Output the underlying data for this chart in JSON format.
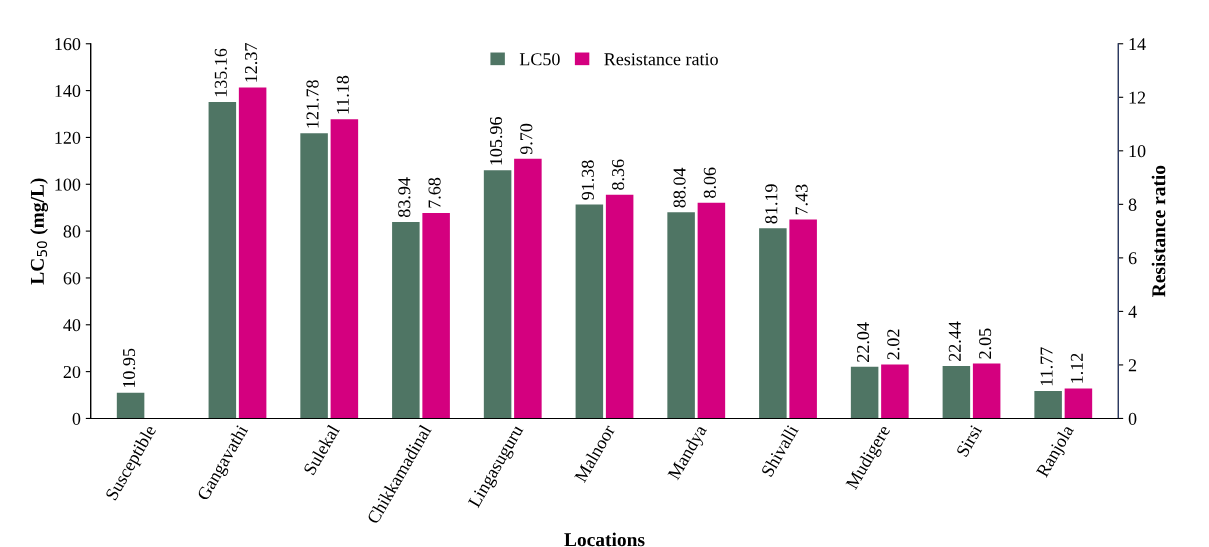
{
  "chart_data": {
    "type": "bar",
    "xlabel": "Locations",
    "ylabel": "LC$_{50}$ (mg/L)",
    "y2label": "Resistance ratio",
    "categories": [
      "Susceptible",
      "Gangavathi",
      "Sulekal",
      "Chikkamadinal",
      "Lingasuguru",
      "Malnoor",
      "Mandya",
      "Shivalli",
      "Mudigere",
      "Sirsi",
      "Ranjola"
    ],
    "series": [
      {
        "name": "LC50",
        "color": "#4f7564",
        "values": [
          10.95,
          135.16,
          121.78,
          83.94,
          105.96,
          91.38,
          88.04,
          81.19,
          22.04,
          22.44,
          11.77
        ],
        "value_labels": [
          "10.95",
          "135.16",
          "121.78",
          "83.94",
          "105.96",
          "91.38",
          "88.04",
          "81.19",
          "22.04",
          "22.44",
          "11.77"
        ]
      },
      {
        "name": "Resistance ratio",
        "color": "#d4007f",
        "axis": "y2",
        "values": [
          null,
          12.37,
          11.18,
          7.68,
          9.7,
          8.36,
          8.06,
          7.43,
          2.02,
          2.05,
          1.12
        ],
        "value_labels": [
          null,
          "12.37",
          "11.18",
          "7.68",
          "9.70",
          "8.36",
          "8.06",
          "7.43",
          "2.02",
          "2.05",
          "1.12"
        ]
      }
    ],
    "ylim": [
      0,
      160
    ],
    "yticks": [
      0,
      20,
      40,
      60,
      80,
      100,
      120,
      140,
      160
    ],
    "y2lim": [
      0,
      14
    ],
    "y2ticks": [
      0,
      2,
      4,
      6,
      8,
      10,
      12,
      14
    ],
    "grid": false,
    "legend": "top"
  }
}
